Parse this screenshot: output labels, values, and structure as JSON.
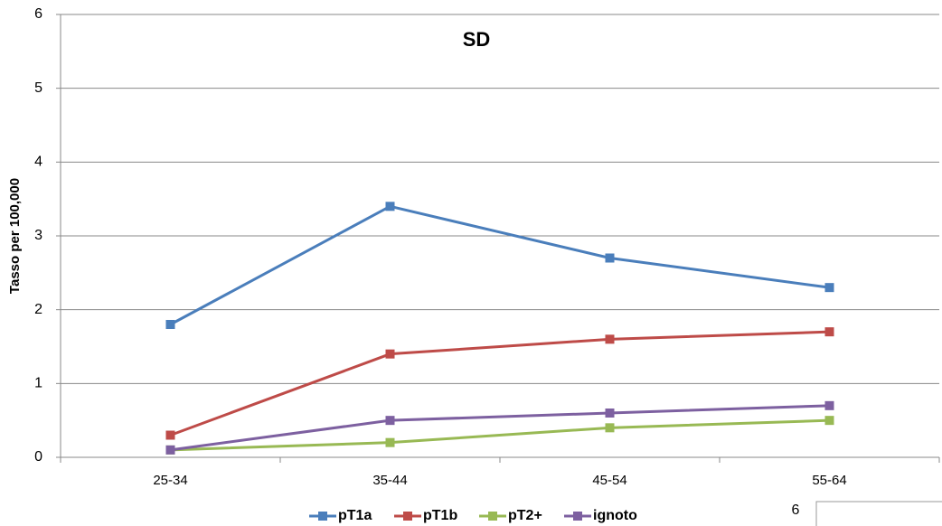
{
  "chart_data": {
    "type": "line",
    "title": "SD",
    "y_label": "Tasso per 100,000",
    "categories": [
      "25-34",
      "35-44",
      "45-54",
      "55-64"
    ],
    "series": [
      {
        "name": "pT1a",
        "color": "#4a7ebb",
        "values": [
          1.8,
          3.4,
          2.7,
          2.3
        ]
      },
      {
        "name": "pT1b",
        "color": "#be4b48",
        "values": [
          0.3,
          1.4,
          1.6,
          1.7
        ]
      },
      {
        "name": "pT2+",
        "color": "#98b954",
        "values": [
          0.1,
          0.2,
          0.4,
          0.5
        ]
      },
      {
        "name": "ignoto",
        "color": "#7d60a0",
        "values": [
          0.1,
          0.5,
          0.6,
          0.7
        ]
      }
    ],
    "ylim": [
      0,
      6
    ],
    "yticks": [
      0,
      1,
      2,
      3,
      4,
      5,
      6
    ],
    "grid": true,
    "legend": "bottom"
  },
  "page_number": "6"
}
